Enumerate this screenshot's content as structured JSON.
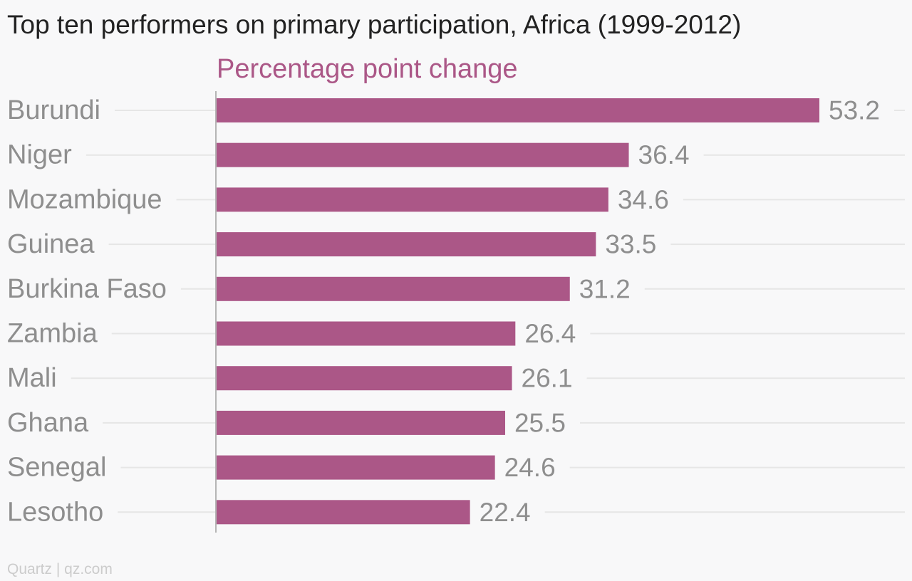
{
  "title": "Top ten performers on primary participation, Africa (1999-2012)",
  "subtitle": "Percentage point change",
  "source": "Quartz | qz.com",
  "colors": {
    "bar": "#ab5787",
    "axis": "#b5b5b5",
    "grid": "#e6e6e6",
    "text": "#8e8e8e",
    "background": "#f8f8f9"
  },
  "chart_data": {
    "type": "bar",
    "orientation": "horizontal",
    "categories": [
      "Burundi",
      "Niger",
      "Mozambique",
      "Guinea",
      "Burkina Faso",
      "Zambia",
      "Mali",
      "Ghana",
      "Senegal",
      "Lesotho"
    ],
    "values": [
      53.2,
      36.4,
      34.6,
      33.5,
      31.2,
      26.4,
      26.1,
      25.5,
      24.6,
      22.4
    ],
    "value_labels": [
      "53.2",
      "36.4",
      "34.6",
      "33.5",
      "31.2",
      "26.4",
      "26.1",
      "25.5",
      "24.6",
      "22.4"
    ],
    "xlim": [
      0,
      53.2
    ],
    "grid": true
  }
}
